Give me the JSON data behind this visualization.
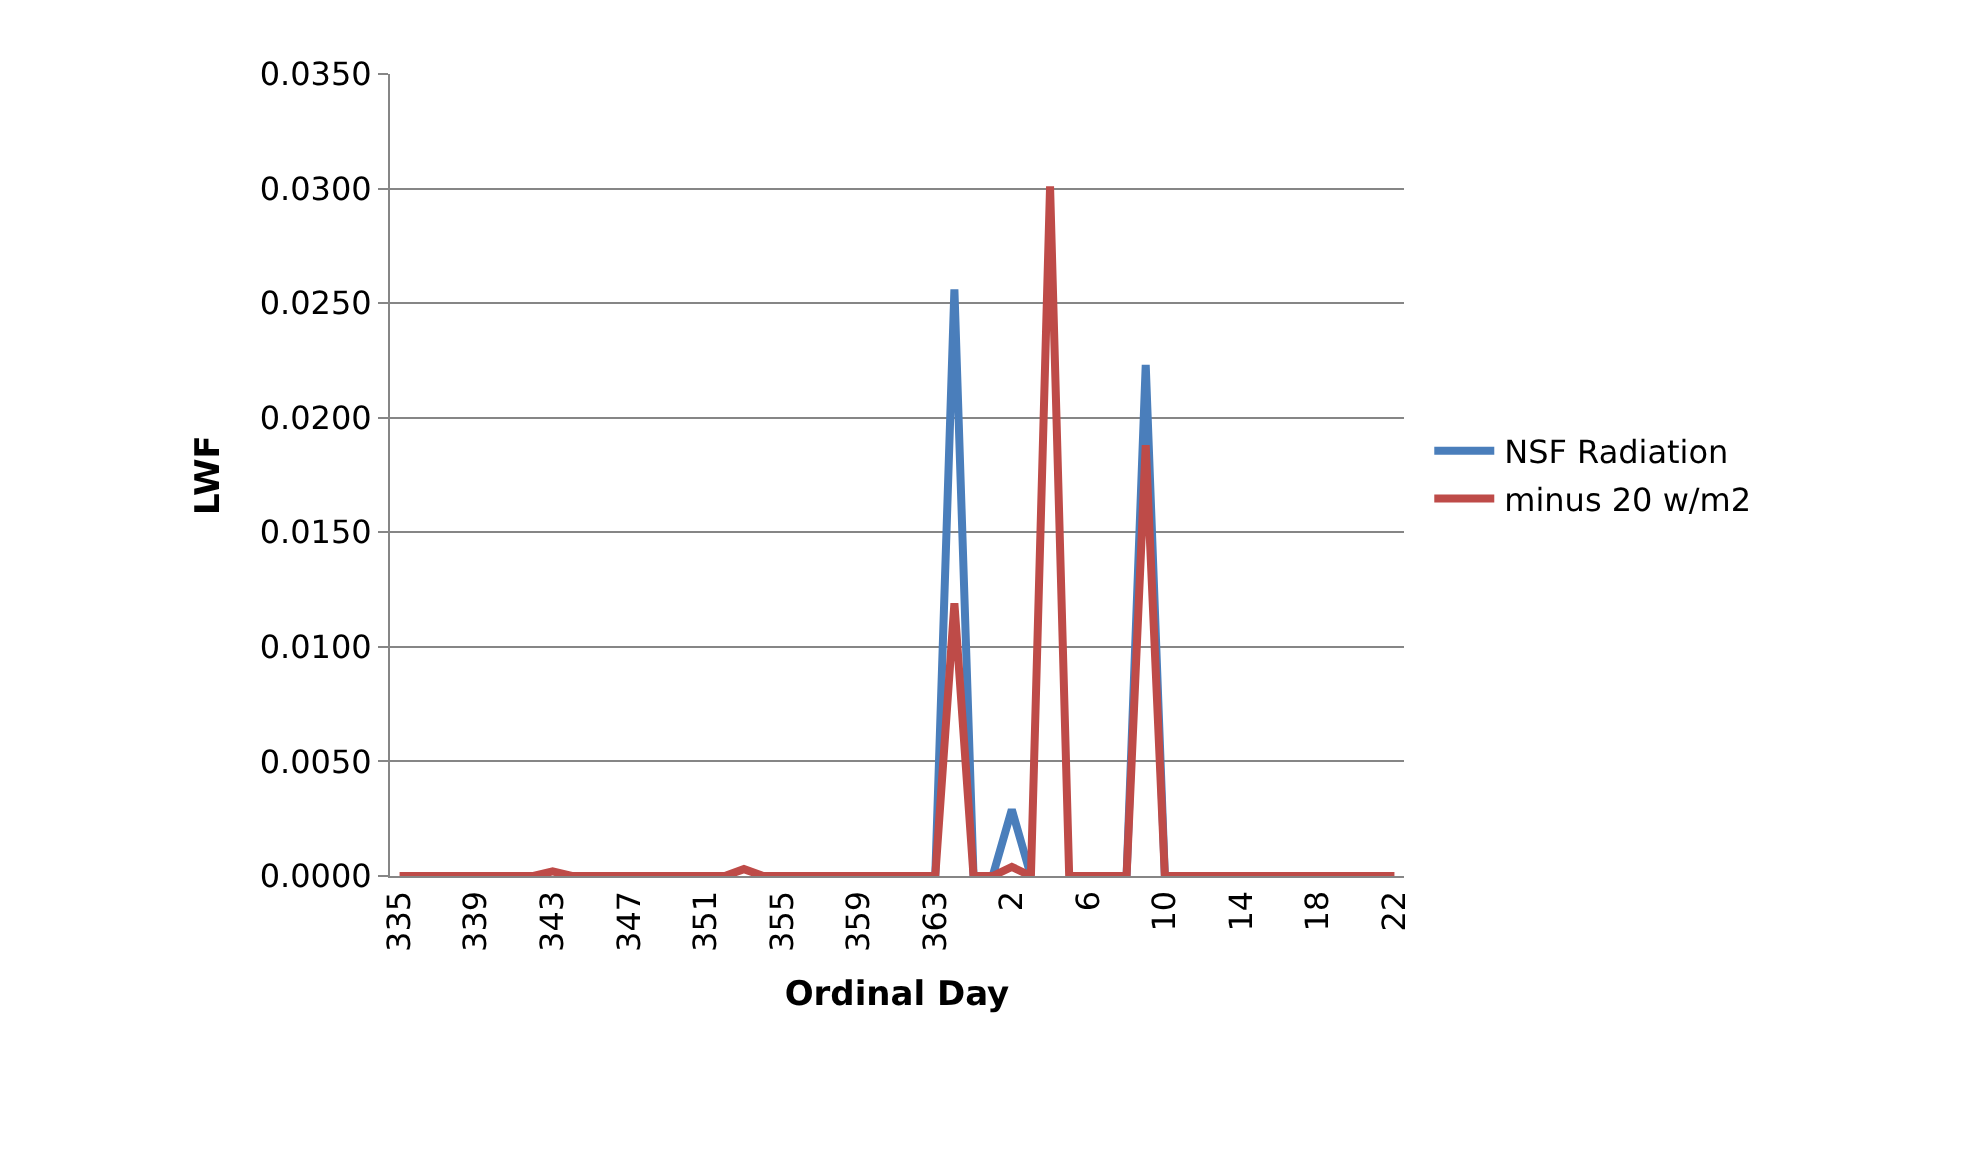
{
  "chart_data": {
    "type": "line",
    "xlabel": "Ordinal Day",
    "ylabel": "LWF",
    "categories": [
      "335",
      null,
      null,
      null,
      "339",
      null,
      null,
      null,
      "343",
      null,
      null,
      null,
      "347",
      null,
      null,
      null,
      "351",
      null,
      null,
      null,
      "355",
      null,
      null,
      null,
      "359",
      null,
      null,
      null,
      "363",
      null,
      null,
      null,
      "2",
      null,
      null,
      null,
      "6",
      null,
      null,
      null,
      "10",
      null,
      null,
      null,
      "14",
      null,
      null,
      null,
      "18",
      null,
      null,
      null,
      "22"
    ],
    "series": [
      {
        "name": "NSF Radiation",
        "color": "#4a7ebb",
        "values": [
          null,
          null,
          null,
          null,
          null,
          null,
          null,
          null,
          null,
          null,
          null,
          null,
          null,
          null,
          null,
          null,
          null,
          null,
          null,
          null,
          null,
          null,
          null,
          null,
          null,
          null,
          null,
          null,
          0,
          0.0256,
          0,
          0,
          0.0029,
          0,
          null,
          null,
          null,
          null,
          0,
          0.0223,
          0,
          null,
          null,
          null,
          null,
          null,
          null,
          null,
          null,
          null,
          null,
          null,
          null
        ]
      },
      {
        "name": "minus 20 w/m2",
        "color": "#be4b48",
        "values": [
          0,
          0,
          0,
          0,
          0,
          0,
          0,
          0,
          0.0002,
          0,
          0,
          0,
          0,
          0,
          0,
          0,
          0,
          0,
          0.0003,
          0,
          0,
          0,
          0,
          0,
          0,
          0,
          0,
          0,
          0,
          0.0119,
          0,
          0,
          0.0004,
          0,
          0.0301,
          0,
          0,
          0,
          0,
          0.0188,
          0,
          0,
          0,
          0,
          0,
          0,
          0,
          0,
          0,
          0,
          0,
          0,
          0
        ]
      }
    ],
    "ylim": [
      0,
      0.035
    ],
    "yticks": [
      {
        "value": 0,
        "label": "0.0000"
      },
      {
        "value": 0.005,
        "label": "0.0050"
      },
      {
        "value": 0.01,
        "label": "0.0100"
      },
      {
        "value": 0.015,
        "label": "0.0150"
      },
      {
        "value": 0.02,
        "label": "0.0200"
      },
      {
        "value": 0.025,
        "label": "0.0250"
      },
      {
        "value": 0.03,
        "label": "0.0300"
      },
      {
        "value": 0.035,
        "label": "0.0350"
      }
    ],
    "grid": "y",
    "legend": "right",
    "marker": "none",
    "line_style": "solid"
  }
}
